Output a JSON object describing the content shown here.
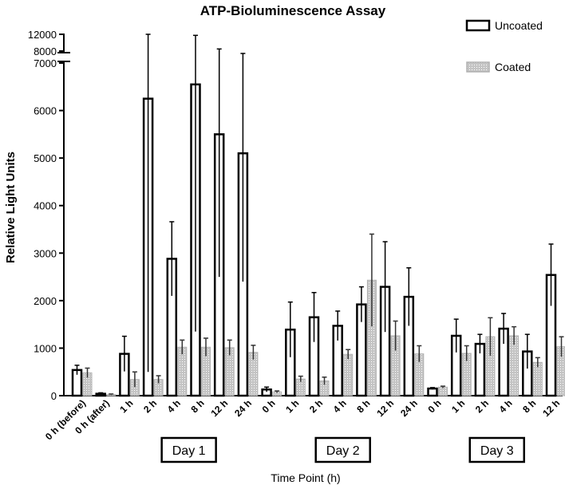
{
  "chart_data": {
    "type": "bar",
    "title": "ATP-Bioluminescence Assay",
    "xlabel": "Time Point (h)",
    "ylabel": "Relative Light Units",
    "ylim": [
      0,
      7000
    ],
    "broken_axis_upper_ticks": [
      "8000",
      "12000"
    ],
    "lower_ticks": [
      "0",
      "1000",
      "2000",
      "3000",
      "4000",
      "5000",
      "6000",
      "7000"
    ],
    "legend_position": "top-right",
    "categories": [
      "0 h (before)",
      "0 h (after)",
      "1 h",
      "2 h",
      "4 h",
      "8 h",
      "12 h",
      "24 h",
      "0 h",
      "1 h",
      "2 h",
      "4 h",
      "8 h",
      "12 h",
      "24 h",
      "0 h",
      "1 h",
      "2 h",
      "4 h",
      "8 h",
      "12 h"
    ],
    "groups": [
      {
        "label": "Day 1",
        "start": 2,
        "end": 7
      },
      {
        "label": "Day 2",
        "start": 8,
        "end": 14
      },
      {
        "label": "Day 3",
        "start": 15,
        "end": 20
      }
    ],
    "series": [
      {
        "name": "Uncoated",
        "style": "hollow",
        "color": "#000000",
        "values": [
          540,
          40,
          880,
          6250,
          2880,
          6550,
          5500,
          5100,
          130,
          1390,
          1650,
          1470,
          1920,
          2290,
          2080,
          150,
          1260,
          1090,
          1410,
          930,
          2540
        ],
        "errors": [
          100,
          20,
          370,
          5750,
          780,
          5200,
          3000,
          2700,
          50,
          580,
          520,
          310,
          370,
          950,
          610,
          20,
          350,
          200,
          320,
          360,
          650
        ]
      },
      {
        "name": "Coated",
        "style": "dotted",
        "color": "#b8b8b8",
        "values": [
          480,
          25,
          340,
          340,
          1020,
          1020,
          1010,
          910,
          80,
          350,
          310,
          870,
          2430,
          1260,
          880,
          180,
          890,
          1240,
          1260,
          700,
          1030
        ],
        "errors": [
          100,
          10,
          160,
          80,
          150,
          190,
          160,
          150,
          20,
          60,
          80,
          100,
          970,
          310,
          170,
          20,
          160,
          400,
          190,
          100,
          210
        ]
      }
    ]
  }
}
